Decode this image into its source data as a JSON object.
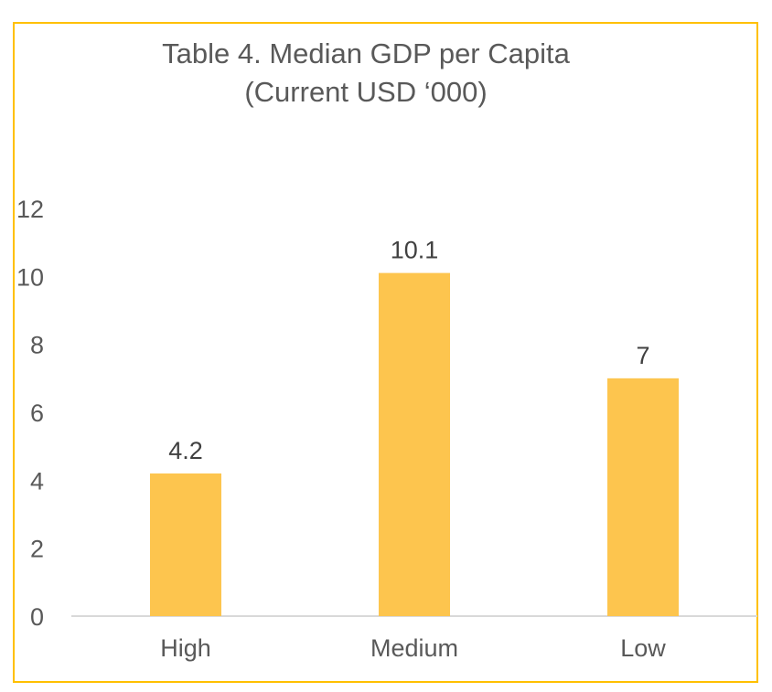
{
  "chart_data": {
    "type": "bar",
    "title": "Table 4. Median GDP per Capita",
    "subtitle": "(Current USD ‘000)",
    "categories": [
      "High",
      "Medium",
      "Low"
    ],
    "values": [
      4.2,
      10.1,
      7
    ],
    "data_labels": [
      "4.2",
      "10.1",
      "7"
    ],
    "ylim": [
      0,
      12
    ],
    "yticks": [
      0,
      2,
      4,
      6,
      8,
      10,
      12
    ],
    "grid": false,
    "legend": "none",
    "bar_color": "#FFC000",
    "bar_fill": "#FDC54E",
    "border_color": "#FFC000"
  }
}
